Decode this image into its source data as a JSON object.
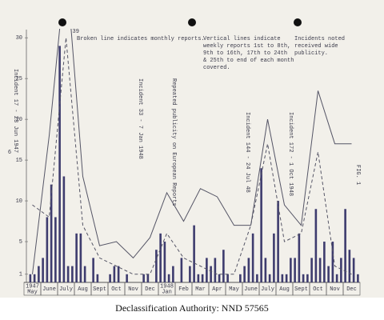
{
  "chart_data": {
    "type": "bar",
    "categories": [
      "May",
      "June",
      "July",
      "Aug",
      "Sept",
      "Oct",
      "Nov",
      "Dec",
      "Jan",
      "Feb",
      "Mar",
      "Apr",
      "May",
      "June",
      "July",
      "Aug",
      "Sept",
      "Oct",
      "Nov",
      "Dec"
    ],
    "category_years": [
      "1947",
      null,
      null,
      null,
      null,
      null,
      null,
      null,
      "1948",
      null,
      null,
      null,
      null,
      null,
      null,
      null,
      null,
      null,
      null,
      null
    ],
    "ylim": [
      0,
      31
    ],
    "yticks": [
      1,
      5,
      10,
      15,
      20,
      25,
      30
    ],
    "y_label": "6",
    "weekly_bars": {
      "color": "#3e3c6e",
      "values": [
        0,
        1,
        1,
        2,
        3,
        8,
        12,
        8,
        29,
        13,
        2,
        2,
        6,
        6,
        2,
        0,
        3,
        1,
        0,
        0,
        1,
        2,
        2,
        0,
        1,
        0,
        0,
        0,
        1,
        1,
        0,
        4,
        6,
        5,
        1,
        2,
        0,
        3,
        0,
        2,
        7,
        1,
        1,
        3,
        2,
        3,
        1,
        4,
        1,
        0,
        0,
        1,
        2,
        3,
        6,
        1,
        14,
        3,
        1,
        6,
        10,
        1,
        1,
        3,
        3,
        6,
        1,
        1,
        3,
        9,
        3,
        5,
        2,
        5,
        1,
        3,
        9,
        4,
        3,
        1
      ]
    },
    "solid_line": {
      "color": "#555566",
      "values": [
        1,
        18,
        39,
        13,
        4.5,
        5,
        3,
        5.5,
        11,
        7.5,
        11.5,
        10.5,
        7,
        7,
        20,
        9.5,
        7,
        23.5,
        17,
        17
      ],
      "value_labels": [
        null,
        null,
        "39",
        null,
        null,
        null,
        null,
        null,
        null,
        null,
        null,
        null,
        null,
        null,
        null,
        null,
        null,
        null,
        null,
        null
      ]
    },
    "broken_line": {
      "color": "#555566",
      "values": [
        9.5,
        8,
        30,
        7,
        3,
        2,
        1,
        1,
        6,
        3,
        2,
        1,
        1,
        7,
        17,
        5,
        6,
        16,
        2,
        1
      ]
    },
    "notes": {
      "monthly": "Broken line indicates monthly reports.",
      "weekly": [
        "Vertical lines indicate",
        "weekly reports 1st to 8th,",
        "9th to 16th, 17th to 24th",
        "& 25th to end of each month",
        "covered."
      ],
      "publicity": [
        "Incidents noted",
        "received wide",
        "publicity."
      ],
      "figure": "FIG. 1"
    },
    "incidents": [
      "Incident 17 - 23 Jun 1947",
      "Incident 33 - 7 Jan 1948",
      "Repeated publicity on European Reports",
      "Incident 144 - 24 Jul 48",
      "Incident 172 - 1 Oct 1948"
    ],
    "footer": "Declassification Authority: NND 57565"
  }
}
